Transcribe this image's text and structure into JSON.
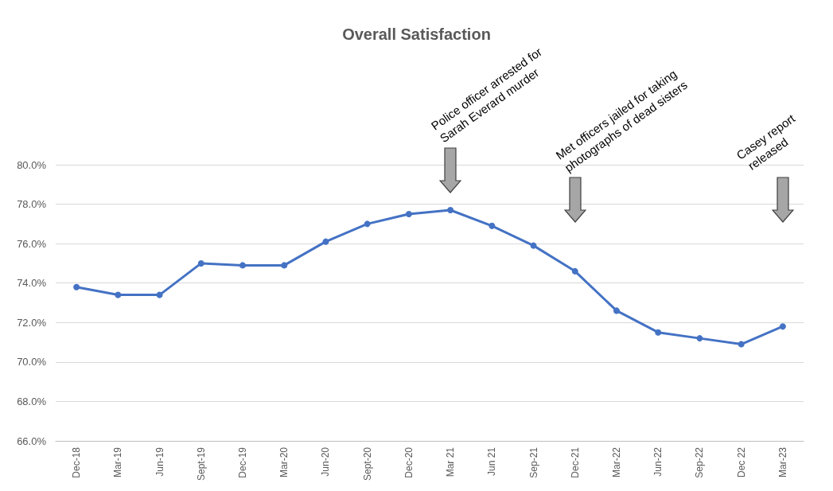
{
  "chart_data": {
    "type": "line",
    "title": "Overall Satisfaction",
    "categories": [
      "Dec-18",
      "Mar-19",
      "Jun-19",
      "Sept-19",
      "Dec-19",
      "Mar-20",
      "Jun-20",
      "Sept-20",
      "Dec-20",
      "Mar 21",
      "Jun 21",
      "Sep-21",
      "Dec-21",
      "Mar-22",
      "Jun-22",
      "Sep-22",
      "Dec 22",
      "Mar-23"
    ],
    "series": [
      {
        "color": "#4472c4",
        "values": [
          73.8,
          73.4,
          73.4,
          75.0,
          74.9,
          74.9,
          76.1,
          77.0,
          77.5,
          77.7,
          76.9,
          75.9,
          74.6,
          72.6,
          71.5,
          71.2,
          70.9,
          71.8
        ]
      }
    ],
    "ylim": [
      66,
      80
    ],
    "yticks": [
      {
        "value": 66,
        "label": "66.0%"
      },
      {
        "value": 68,
        "label": "68.0%"
      },
      {
        "value": 70,
        "label": "70.0%"
      },
      {
        "value": 72,
        "label": "72.0%"
      },
      {
        "value": 74,
        "label": "74.0%"
      },
      {
        "value": 76,
        "label": "76.0%"
      },
      {
        "value": 78,
        "label": "78.0%"
      },
      {
        "value": 80,
        "label": "80.0%"
      }
    ],
    "grid": "y",
    "marker": "circle",
    "line_style": "solid",
    "annotations": [
      "Police officer arrested for Sarah Everard murder",
      "Met officers jailed for taking photographs of dead sisters",
      "Casey report released"
    ]
  }
}
